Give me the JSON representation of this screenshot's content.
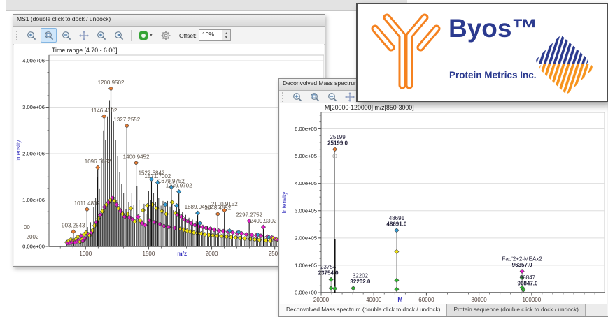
{
  "ms1_window": {
    "title": "MS1 (double click to dock / undock)",
    "toolbar": {
      "icons": [
        "zoom-fit",
        "zoom-box",
        "zoom-out",
        "pan",
        "zoom-in",
        "zoom-forward"
      ],
      "active_icon": "zoom-box",
      "extra_icons": [
        "snapshot",
        "settings"
      ],
      "offset_label": "Offset:",
      "offset_value": "10%"
    }
  },
  "deconv_window": {
    "title": "Deconvolved Mass spectrum (double click to dock / undock)",
    "toolbar": {
      "icons": [
        "zoom-fit",
        "zoom-box",
        "zoom-out",
        "pan",
        "zoom-forward"
      ],
      "active_icon": ""
    },
    "tabs": [
      {
        "label": "Deconvolved Mass spectrum (double click to dock / undock)",
        "active": true
      },
      {
        "label": "Protein sequence (double click to dock / undock)",
        "active": false
      }
    ]
  },
  "logo_card": {
    "product": "Byos™",
    "company": "Protein Metrics Inc.",
    "accent_orange": "#F58220",
    "accent_navy": "#2B3A8F"
  },
  "chart_data": [
    {
      "type": "bar",
      "variant": "centroid-mass-spectrum",
      "title": "Time range [4.70 - 6.00]",
      "xlabel": "m/z",
      "ylabel": "Intensity",
      "xlim": [
        710,
        2890
      ],
      "ylim": [
        0,
        4120000
      ],
      "xticks": [
        1000,
        1500,
        2000,
        2500
      ],
      "ytick_values": [
        0,
        1000000,
        2000000,
        3000000,
        4000000
      ],
      "ytick_labels": [
        "0.00e+00",
        "1.00e+06",
        "2.00e+06",
        "3.00e+06",
        "4.00e+06"
      ],
      "xlabel_at": 1765,
      "grid": true,
      "marker_colors": {
        "o": "#ED7D31",
        "b": "#2E9BD6",
        "y": "#F0E20F",
        "m": "#E41BC8",
        "g": "#2FB52F"
      },
      "labeled_peaks": [
        {
          "mz": 903.2543,
          "intensity": 320000,
          "marker": "o",
          "label": "903.2543"
        },
        {
          "mz": 1011.4802,
          "intensity": 800000,
          "marker": "o",
          "label": "1011.4802"
        },
        {
          "mz": 1096.6652,
          "intensity": 1700000,
          "marker": "o",
          "label": "1096.6652"
        },
        {
          "mz": 1146.4102,
          "intensity": 2800000,
          "marker": "o",
          "label": "1146.4102"
        },
        {
          "mz": 1200.9502,
          "intensity": 3400000,
          "marker": "o",
          "label": "1200.9502"
        },
        {
          "mz": 1327.2552,
          "intensity": 2600000,
          "marker": "o",
          "label": "1327.2552"
        },
        {
          "mz": 1400.9452,
          "intensity": 1800000,
          "marker": "o",
          "label": "1400.9452"
        },
        {
          "mz": 1522.5842,
          "intensity": 1450000,
          "marker": "b",
          "label": "1522.5842"
        },
        {
          "mz": 1571.7002,
          "intensity": 1380000,
          "marker": "b",
          "label": "1571.7002"
        },
        {
          "mz": 1679.9752,
          "intensity": 1280000,
          "marker": "b",
          "label": "1679.9752"
        },
        {
          "mz": 1739.9702,
          "intensity": 1180000,
          "marker": "b",
          "label": "1739.9702"
        },
        {
          "mz": 1889.0452,
          "intensity": 720000,
          "marker": "b",
          "label": "1889.0452"
        },
        {
          "mz": 2048.4652,
          "intensity": 700000,
          "marker": "o",
          "label": "2048.4652"
        },
        {
          "mz": 2100.9152,
          "intensity": 780000,
          "marker": "o",
          "label": "2100.9152"
        },
        {
          "mz": 2297.2752,
          "intensity": 550000,
          "marker": "m",
          "label": "2297.2752"
        },
        {
          "mz": 2409.9302,
          "intensity": 420000,
          "marker": "m",
          "label": "2409.9302"
        }
      ],
      "partial_labels": [
        {
          "text": "00",
          "mz": 510,
          "intensity": 375000
        },
        {
          "text": "2002",
          "mz": 530,
          "intensity": 165000
        }
      ],
      "background_peaks": [
        [
          852,
          90000,
          "y"
        ],
        [
          860,
          70000,
          "m"
        ],
        [
          868,
          120000,
          "y"
        ],
        [
          876,
          80000,
          "m"
        ],
        [
          884,
          150000,
          "y"
        ],
        [
          892,
          100000,
          "m"
        ],
        [
          900,
          200000,
          ""
        ],
        [
          908,
          120000,
          "y"
        ],
        [
          916,
          90000,
          "m"
        ],
        [
          924,
          160000,
          "y"
        ],
        [
          932,
          110000,
          "m"
        ],
        [
          940,
          210000,
          "y"
        ],
        [
          948,
          130000,
          "m"
        ],
        [
          956,
          100000,
          "y"
        ],
        [
          964,
          230000,
          "m"
        ],
        [
          972,
          150000,
          "y"
        ],
        [
          980,
          120000,
          "m"
        ],
        [
          988,
          260000,
          "y"
        ],
        [
          996,
          170000,
          "m"
        ],
        [
          1004,
          300000,
          "y"
        ],
        [
          1016,
          420000,
          ""
        ],
        [
          1024,
          260000,
          "m"
        ],
        [
          1032,
          240000,
          "y"
        ],
        [
          1040,
          520000,
          ""
        ],
        [
          1048,
          300000,
          "m"
        ],
        [
          1056,
          350000,
          "y"
        ],
        [
          1064,
          850000,
          ""
        ],
        [
          1072,
          450000,
          "y"
        ],
        [
          1080,
          1050000,
          ""
        ],
        [
          1088,
          520000,
          "m"
        ],
        [
          1094,
          1500000,
          ""
        ],
        [
          1102,
          600000,
          "y"
        ],
        [
          1110,
          1250000,
          ""
        ],
        [
          1118,
          680000,
          "m"
        ],
        [
          1126,
          1900000,
          ""
        ],
        [
          1134,
          760000,
          "y"
        ],
        [
          1142,
          2500000,
          ""
        ],
        [
          1150,
          850000,
          "m"
        ],
        [
          1158,
          2300000,
          ""
        ],
        [
          1166,
          900000,
          "y"
        ],
        [
          1174,
          2800000,
          ""
        ],
        [
          1182,
          950000,
          "m"
        ],
        [
          1190,
          3150000,
          ""
        ],
        [
          1198,
          1000000,
          "y"
        ],
        [
          1206,
          3000000,
          ""
        ],
        [
          1214,
          1050000,
          "m"
        ],
        [
          1222,
          2700000,
          ""
        ],
        [
          1230,
          980000,
          "y"
        ],
        [
          1238,
          2300000,
          ""
        ],
        [
          1246,
          900000,
          "m"
        ],
        [
          1254,
          1950000,
          ""
        ],
        [
          1262,
          820000,
          "y"
        ],
        [
          1270,
          1600000,
          ""
        ],
        [
          1278,
          760000,
          "m"
        ],
        [
          1286,
          1350000,
          ""
        ],
        [
          1294,
          700000,
          "y"
        ],
        [
          1302,
          1150000,
          ""
        ],
        [
          1310,
          640000,
          "m"
        ],
        [
          1320,
          800000,
          ""
        ],
        [
          1334,
          700000,
          "y"
        ],
        [
          1342,
          950000,
          ""
        ],
        [
          1350,
          620000,
          "m"
        ],
        [
          1358,
          820000,
          "y"
        ],
        [
          1366,
          1150000,
          ""
        ],
        [
          1374,
          580000,
          "m"
        ],
        [
          1382,
          900000,
          ""
        ],
        [
          1390,
          540000,
          "y"
        ],
        [
          1408,
          1300000,
          ""
        ],
        [
          1416,
          640000,
          "m"
        ],
        [
          1424,
          1000000,
          ""
        ],
        [
          1432,
          560000,
          "y"
        ],
        [
          1440,
          860000,
          ""
        ],
        [
          1448,
          500000,
          "m"
        ],
        [
          1456,
          780000,
          "y"
        ],
        [
          1464,
          920000,
          ""
        ],
        [
          1472,
          460000,
          "m"
        ],
        [
          1480,
          700000,
          ""
        ],
        [
          1490,
          880000,
          "y"
        ],
        [
          1500,
          1200000,
          ""
        ],
        [
          1508,
          560000,
          "m"
        ],
        [
          1516,
          1000000,
          ""
        ],
        [
          1530,
          900000,
          "y"
        ],
        [
          1540,
          1150000,
          ""
        ],
        [
          1548,
          520000,
          "m"
        ],
        [
          1556,
          950000,
          ""
        ],
        [
          1564,
          820000,
          "y"
        ],
        [
          1580,
          1050000,
          ""
        ],
        [
          1590,
          480000,
          "m"
        ],
        [
          1598,
          880000,
          ""
        ],
        [
          1606,
          760000,
          "y"
        ],
        [
          1614,
          980000,
          ""
        ],
        [
          1622,
          440000,
          "m"
        ],
        [
          1632,
          900000,
          "b"
        ],
        [
          1640,
          700000,
          "y"
        ],
        [
          1650,
          980000,
          ""
        ],
        [
          1660,
          420000,
          "m"
        ],
        [
          1670,
          860000,
          ""
        ],
        [
          1686,
          950000,
          "y"
        ],
        [
          1696,
          780000,
          ""
        ],
        [
          1706,
          400000,
          "m"
        ],
        [
          1714,
          720000,
          "y"
        ],
        [
          1722,
          880000,
          "b"
        ],
        [
          1732,
          680000,
          "m"
        ],
        [
          1744,
          800000,
          ""
        ],
        [
          1752,
          380000,
          "y"
        ],
        [
          1760,
          640000,
          "m"
        ],
        [
          1768,
          740000,
          ""
        ],
        [
          1778,
          360000,
          "y"
        ],
        [
          1786,
          580000,
          "m"
        ],
        [
          1794,
          680000,
          ""
        ],
        [
          1804,
          340000,
          "y"
        ],
        [
          1812,
          540000,
          "m"
        ],
        [
          1820,
          620000,
          ""
        ],
        [
          1830,
          320000,
          "y"
        ],
        [
          1838,
          500000,
          "m"
        ],
        [
          1848,
          580000,
          ""
        ],
        [
          1858,
          300000,
          "y"
        ],
        [
          1866,
          460000,
          "m"
        ],
        [
          1876,
          540000,
          ""
        ],
        [
          1886,
          290000,
          "y"
        ],
        [
          1896,
          440000,
          "m"
        ],
        [
          1906,
          500000,
          "b"
        ],
        [
          1916,
          280000,
          "y"
        ],
        [
          1926,
          420000,
          "m"
        ],
        [
          1936,
          470000,
          ""
        ],
        [
          1946,
          260000,
          "y"
        ],
        [
          1956,
          400000,
          "m"
        ],
        [
          1966,
          440000,
          ""
        ],
        [
          1978,
          250000,
          "y"
        ],
        [
          1988,
          380000,
          "m"
        ],
        [
          1998,
          420000,
          ""
        ],
        [
          2010,
          240000,
          "y"
        ],
        [
          2020,
          360000,
          "m"
        ],
        [
          2032,
          400000,
          ""
        ],
        [
          2044,
          230000,
          "y"
        ],
        [
          2056,
          340000,
          "m"
        ],
        [
          2068,
          380000,
          ""
        ],
        [
          2080,
          220000,
          "y"
        ],
        [
          2092,
          330000,
          "m"
        ],
        [
          2106,
          360000,
          ""
        ],
        [
          2118,
          210000,
          "y"
        ],
        [
          2130,
          320000,
          "m"
        ],
        [
          2142,
          340000,
          "b"
        ],
        [
          2154,
          200000,
          "y"
        ],
        [
          2166,
          300000,
          "m"
        ],
        [
          2178,
          320000,
          ""
        ],
        [
          2190,
          190000,
          "y"
        ],
        [
          2202,
          290000,
          "m"
        ],
        [
          2214,
          310000,
          "b"
        ],
        [
          2226,
          180000,
          "y"
        ],
        [
          2238,
          280000,
          "m"
        ],
        [
          2250,
          300000,
          ""
        ],
        [
          2262,
          170000,
          "y"
        ],
        [
          2274,
          260000,
          "m"
        ],
        [
          2286,
          280000,
          ""
        ],
        [
          2306,
          160000,
          "y"
        ],
        [
          2318,
          250000,
          "m"
        ],
        [
          2330,
          260000,
          ""
        ],
        [
          2342,
          150000,
          "y"
        ],
        [
          2354,
          240000,
          "m"
        ],
        [
          2366,
          250000,
          "b"
        ],
        [
          2378,
          140000,
          "y"
        ],
        [
          2390,
          230000,
          "m"
        ],
        [
          2418,
          220000,
          ""
        ],
        [
          2430,
          130000,
          "y"
        ],
        [
          2442,
          210000,
          "m"
        ],
        [
          2454,
          200000,
          "b"
        ],
        [
          2466,
          120000,
          "y"
        ],
        [
          2478,
          190000,
          "m"
        ],
        [
          2490,
          180000,
          "y"
        ],
        [
          2502,
          160000,
          "m"
        ],
        [
          2514,
          150000,
          "y"
        ],
        [
          2526,
          140000,
          "m"
        ],
        [
          2538,
          120000,
          "y"
        ],
        [
          2550,
          100000,
          "m"
        ]
      ]
    },
    {
      "type": "bar",
      "variant": "centroid-mass-spectrum",
      "title": "M[20000-120000] m/z[850-3000]",
      "xlabel": "M",
      "ylabel": "Intensity",
      "xlim": [
        20000,
        127700
      ],
      "ylim": [
        0,
        660000
      ],
      "xticks": [
        20000,
        40000,
        60000,
        80000,
        100000
      ],
      "ytick_values": [
        0,
        100000,
        200000,
        300000,
        400000,
        500000,
        600000
      ],
      "ytick_labels": [
        "0.00e+00",
        "1.00e+05",
        "2.00e+05",
        "3.00e+05",
        "4.00e+05",
        "5.00e+05",
        "6.00e+05"
      ],
      "xlabel_at": 50000,
      "grid": true,
      "marker_colors": {
        "o": "#ED7D31",
        "b": "#2E9BD6",
        "y": "#F0E20F",
        "m": "#E41BC8",
        "g": "#2FB52F"
      },
      "peaks": [
        {
          "mass": 23754,
          "intensity": 48000,
          "marker": "g",
          "labels": [
            "23754",
            "23754.0"
          ],
          "sub": [
            [
              "g",
              16000
            ]
          ],
          "ldx": -4
        },
        {
          "mass": 25199,
          "intensity": 525000,
          "marker": "o",
          "labels": [
            "25199",
            "25199.0"
          ],
          "sub": [
            [
              "grey",
              500000
            ],
            [
              "g",
              15000
            ]
          ],
          "thick_to": 195000,
          "ldx": 4
        },
        {
          "mass": 32202,
          "intensity": 16000,
          "marker": "g",
          "labels": [
            "32202",
            "32202.0"
          ],
          "ldx": 10
        },
        {
          "mass": 48691,
          "intensity": 228000,
          "marker": "b",
          "labels": [
            "48691",
            "48691.0"
          ],
          "sub": [
            [
              "y",
              150000
            ],
            [
              "g",
              45000
            ],
            [
              "g",
              12000
            ]
          ]
        },
        {
          "mass": 96357,
          "intensity": 78000,
          "marker": "m",
          "labels": [
            "Fab'2+2-MEAx2",
            "96357.0"
          ],
          "sub": [
            [
              "g",
              55000
            ],
            [
              "g",
              18000
            ]
          ]
        },
        {
          "mass": 96847,
          "intensity": 10000,
          "marker": "g",
          "labels": [
            "96847",
            "96847.0"
          ],
          "ldx": 6
        }
      ]
    }
  ]
}
